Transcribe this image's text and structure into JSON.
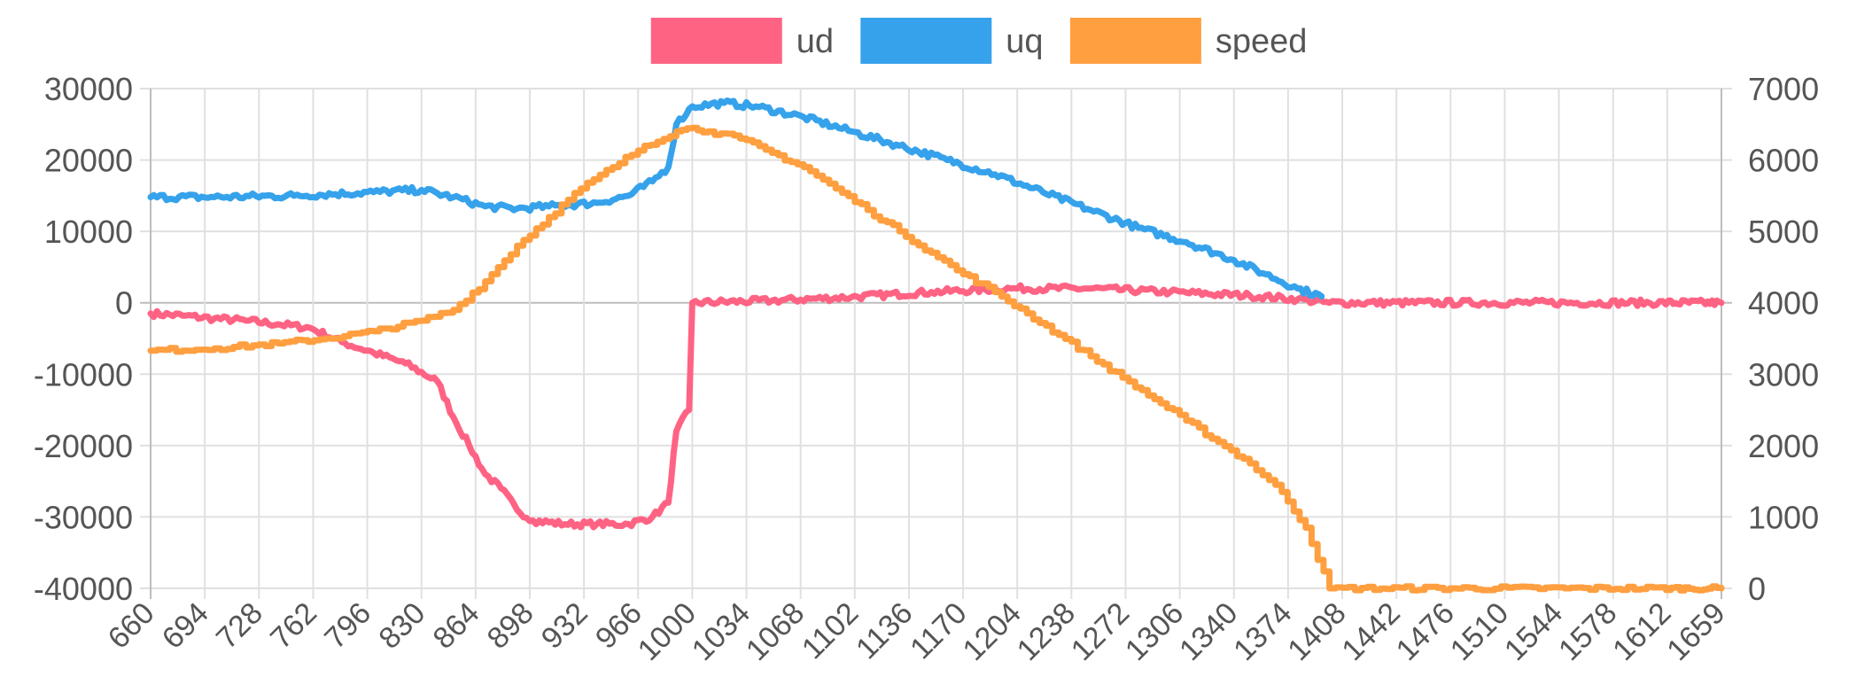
{
  "chart_data": {
    "type": "line",
    "title": "",
    "legend": {
      "placement": "top-center"
    },
    "grid": true,
    "x": {
      "min": 660,
      "max": 1659,
      "tick_labels": [
        "660",
        "694",
        "728",
        "762",
        "796",
        "830",
        "864",
        "898",
        "932",
        "966",
        "1000",
        "1034",
        "1068",
        "1102",
        "1136",
        "1170",
        "1204",
        "1238",
        "1272",
        "1306",
        "1340",
        "1374",
        "1408",
        "1442",
        "1476",
        "1510",
        "1544",
        "1578",
        "1612",
        "1659"
      ]
    },
    "y_left": {
      "min": -40000,
      "max": 30000,
      "ticks": [
        30000,
        20000,
        10000,
        0,
        -10000,
        -20000,
        -30000,
        -40000
      ],
      "tick_labels": [
        "30000",
        "20000",
        "10000",
        "0",
        "-10000",
        "-20000",
        "-30000",
        "-40000"
      ]
    },
    "y_right": {
      "min": 0,
      "max": 7000,
      "ticks": [
        7000,
        6000,
        5000,
        4000,
        3000,
        2000,
        1000,
        0
      ],
      "tick_labels": [
        "7000",
        "6000",
        "5000",
        "4000",
        "3000",
        "2000",
        "1000",
        "0"
      ]
    },
    "series": [
      {
        "name": "ud",
        "axis": "left",
        "color": "#ff6384",
        "points": [
          [
            660,
            -1500
          ],
          [
            680,
            -1800
          ],
          [
            700,
            -2200
          ],
          [
            720,
            -2500
          ],
          [
            740,
            -3000
          ],
          [
            760,
            -3500
          ],
          [
            780,
            -5500
          ],
          [
            800,
            -7000
          ],
          [
            820,
            -8500
          ],
          [
            840,
            -11000
          ],
          [
            850,
            -16000
          ],
          [
            860,
            -20000
          ],
          [
            870,
            -24000
          ],
          [
            880,
            -26000
          ],
          [
            890,
            -29000
          ],
          [
            900,
            -30500
          ],
          [
            920,
            -31000
          ],
          [
            940,
            -31000
          ],
          [
            960,
            -31000
          ],
          [
            975,
            -30000
          ],
          [
            985,
            -28000
          ],
          [
            990,
            -18000
          ],
          [
            998,
            -15000
          ],
          [
            1000,
            0
          ],
          [
            1050,
            300
          ],
          [
            1100,
            800
          ],
          [
            1150,
            1500
          ],
          [
            1200,
            2000
          ],
          [
            1250,
            2000
          ],
          [
            1300,
            1500
          ],
          [
            1350,
            1000
          ],
          [
            1380,
            500
          ],
          [
            1400,
            0
          ],
          [
            1659,
            0
          ]
        ]
      },
      {
        "name": "uq",
        "axis": "left",
        "color": "#36a2eb",
        "points": [
          [
            660,
            14800
          ],
          [
            700,
            14800
          ],
          [
            750,
            15000
          ],
          [
            800,
            15500
          ],
          [
            830,
            15800
          ],
          [
            850,
            14800
          ],
          [
            870,
            13500
          ],
          [
            890,
            13200
          ],
          [
            910,
            13500
          ],
          [
            940,
            14000
          ],
          [
            960,
            15000
          ],
          [
            975,
            17000
          ],
          [
            985,
            19000
          ],
          [
            990,
            25000
          ],
          [
            1000,
            27500
          ],
          [
            1020,
            28000
          ],
          [
            1040,
            27500
          ],
          [
            1070,
            26000
          ],
          [
            1100,
            24000
          ],
          [
            1130,
            22000
          ],
          [
            1160,
            20000
          ],
          [
            1190,
            18000
          ],
          [
            1220,
            15500
          ],
          [
            1250,
            13000
          ],
          [
            1280,
            10500
          ],
          [
            1310,
            8500
          ],
          [
            1340,
            6000
          ],
          [
            1360,
            4000
          ],
          [
            1380,
            2000
          ],
          [
            1395,
            900
          ]
        ]
      },
      {
        "name": "speed",
        "axis": "right",
        "color": "#ff9f40",
        "points": [
          [
            660,
            3330
          ],
          [
            700,
            3360
          ],
          [
            740,
            3430
          ],
          [
            770,
            3500
          ],
          [
            800,
            3600
          ],
          [
            830,
            3750
          ],
          [
            850,
            3900
          ],
          [
            870,
            4300
          ],
          [
            890,
            4800
          ],
          [
            910,
            5200
          ],
          [
            930,
            5600
          ],
          [
            950,
            5900
          ],
          [
            970,
            6200
          ],
          [
            990,
            6400
          ],
          [
            1000,
            6450
          ],
          [
            1010,
            6400
          ],
          [
            1030,
            6300
          ],
          [
            1050,
            6100
          ],
          [
            1070,
            5900
          ],
          [
            1090,
            5600
          ],
          [
            1110,
            5300
          ],
          [
            1130,
            5000
          ],
          [
            1150,
            4700
          ],
          [
            1170,
            4400
          ],
          [
            1190,
            4150
          ],
          [
            1210,
            3850
          ],
          [
            1230,
            3550
          ],
          [
            1250,
            3250
          ],
          [
            1270,
            2950
          ],
          [
            1290,
            2650
          ],
          [
            1310,
            2350
          ],
          [
            1330,
            2050
          ],
          [
            1350,
            1750
          ],
          [
            1370,
            1350
          ],
          [
            1385,
            850
          ],
          [
            1400,
            0
          ],
          [
            1659,
            0
          ]
        ]
      }
    ]
  }
}
